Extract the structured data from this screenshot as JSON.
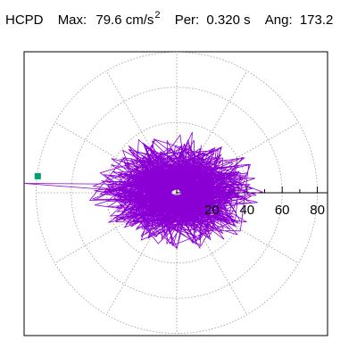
{
  "header": {
    "label": "HCPD",
    "max_label": "Max:",
    "max_value": "79.6 cm/s",
    "max_exp": "2",
    "per_label": "Per:",
    "per_value": "0.320 s",
    "ang_label": "Ang:",
    "ang_value": "173.2"
  },
  "chart_data": {
    "type": "scatter",
    "subtype": "polar-orbit",
    "title": "",
    "r_ticks": [
      "20",
      "40",
      "60",
      "80"
    ],
    "rlim": [
      0,
      90
    ],
    "grid": true,
    "grid_rings": [
      20,
      40,
      60,
      80
    ],
    "grid_spokes_deg": [
      0,
      30,
      60,
      90,
      120,
      150,
      180,
      210,
      240,
      270,
      300,
      330
    ],
    "peak": {
      "magnitude": 79.6,
      "angle_deg": 173.2,
      "units": "cm/s^2"
    },
    "period_s": 0.32,
    "trace_color": "#8a00d4",
    "marker_color": "#009e73"
  }
}
